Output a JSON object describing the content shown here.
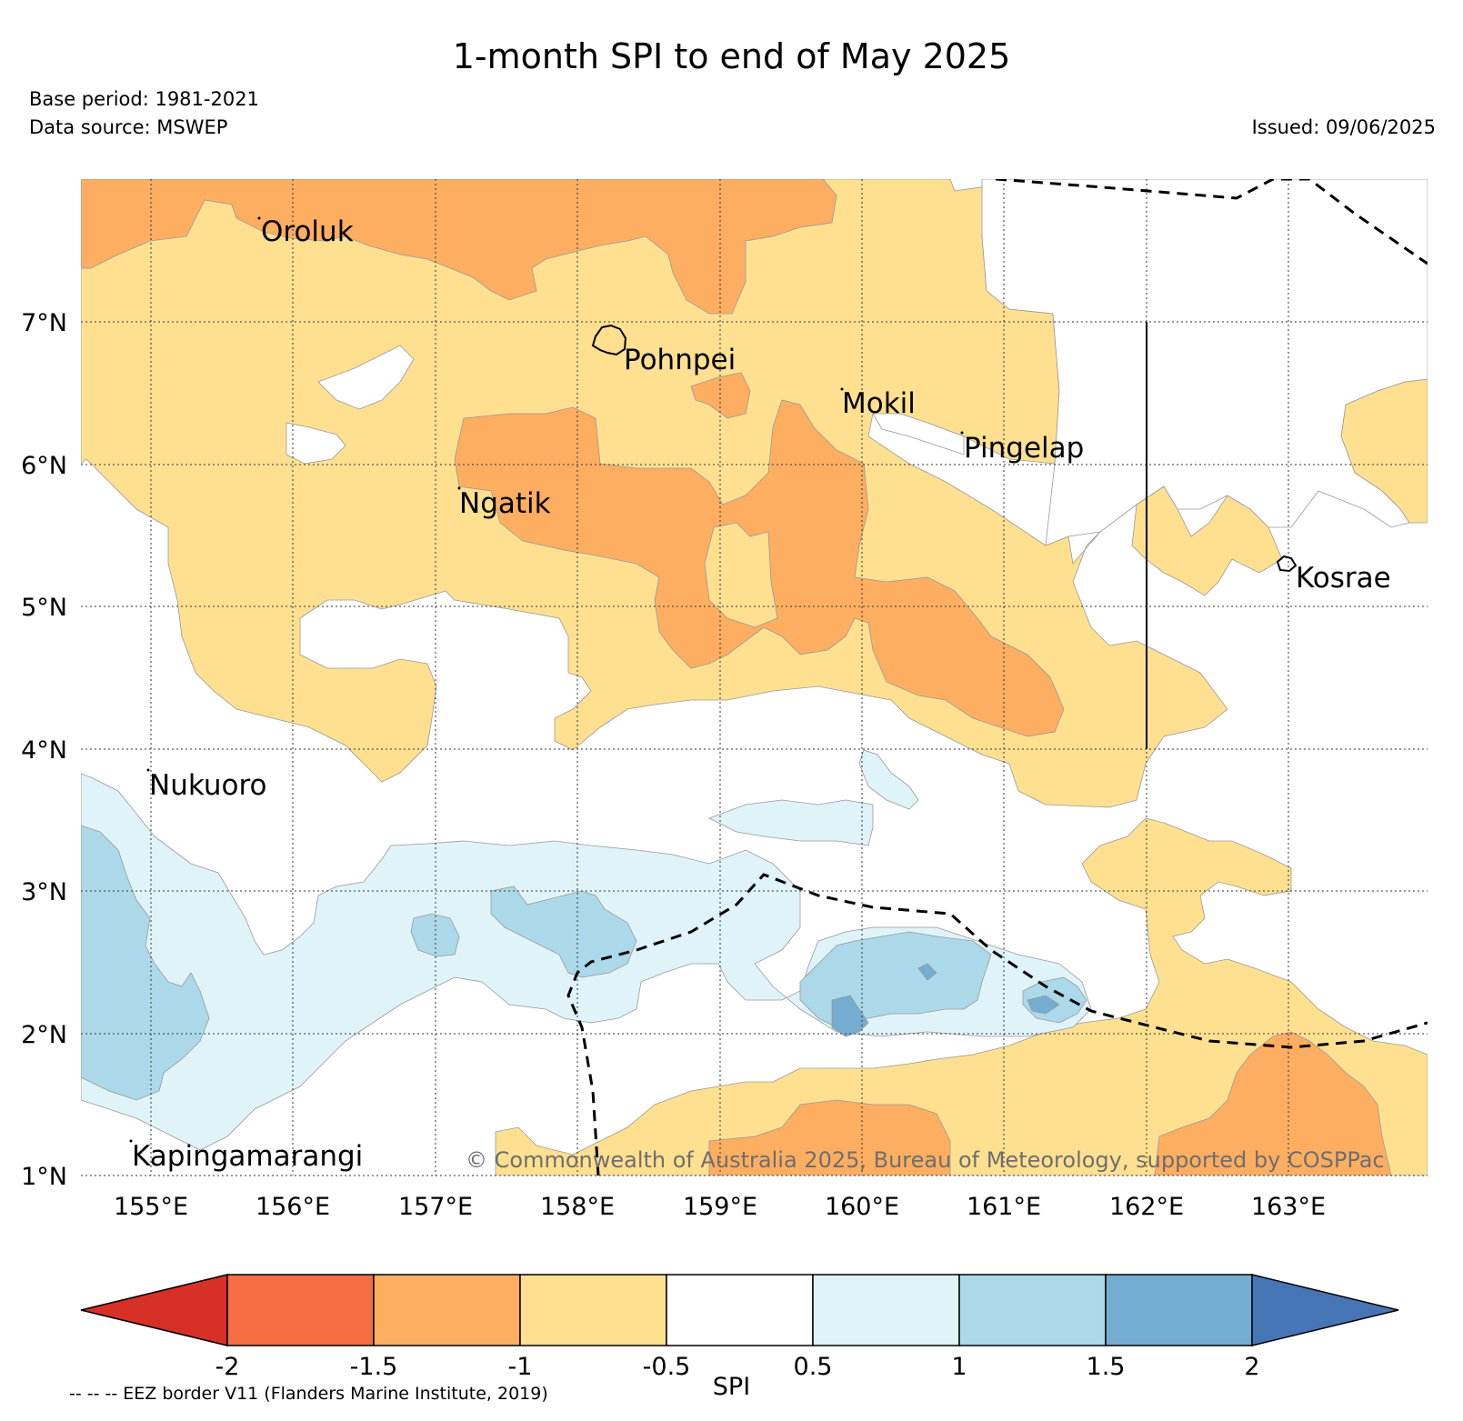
{
  "title": "1-month SPI to end of May 2025",
  "base_period": "Base period: 1981-2021",
  "data_source": "Data source: MSWEP",
  "issued": "Issued: 09/06/2025",
  "copyright": "© Commonwealth of Australia 2025, Bureau of Meteorology, supported by COSPPac",
  "eez_note": "-- -- -- EEZ border V11 (Flanders Marine Institute, 2019)",
  "lat_labels": [
    "7°N",
    "6°N",
    "5°N",
    "4°N",
    "3°N",
    "2°N",
    "1°N"
  ],
  "lon_labels": [
    "155°E",
    "156°E",
    "157°E",
    "158°E",
    "159°E",
    "160°E",
    "161°E",
    "162°E",
    "163°E"
  ],
  "places": [
    "Oroluk",
    "Pohnpei",
    "Mokil",
    "Pingelap",
    "Ngatik",
    "Kosrae",
    "Nukuoro",
    "Kapingamarangi"
  ],
  "colorbar": {
    "label": "SPI",
    "ticks": [
      "-2",
      "-1.5",
      "-1",
      "-0.5",
      "0.5",
      "1",
      "1.5",
      "2"
    ],
    "colors": [
      "#d73027",
      "#f46d43",
      "#fdae61",
      "#fee090",
      "#ffffff",
      "#e0f3f8",
      "#abd9e9",
      "#74add1",
      "#4575b4"
    ]
  }
}
